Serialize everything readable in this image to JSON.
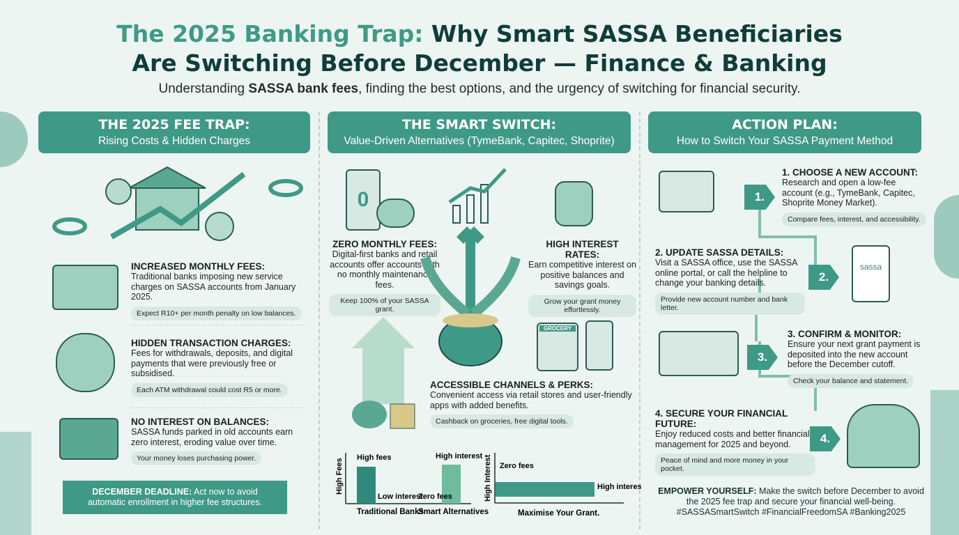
{
  "header": {
    "title_part1": "The 2025 Banking Trap:",
    "title_part2": " Why Smart SASSA Beneficiaries",
    "title_line2": "Are Switching Before December — Finance & Banking",
    "subtitle_pre": "Understanding ",
    "subtitle_bold": "SASSA bank fees",
    "subtitle_post": ", finding the best options, and the urgency of switching for financial security."
  },
  "colors": {
    "accent": "#3f9987",
    "title": "#0f3d3a",
    "background": "#edf5f2"
  },
  "left": {
    "banner_title": "THE 2025 FEE TRAP:",
    "banner_sub": "Rising Costs & Hidden Charges",
    "items": [
      {
        "title": "INCREASED MONTHLY FEES:",
        "text": "Traditional banks imposing new service charges on SASSA accounts from January 2025.",
        "pill": "Expect R10+ per month penalty on low balances.",
        "icon": "coins-calendar-icon"
      },
      {
        "title": "HIDDEN TRANSACTION CHARGES:",
        "text": "Fees for withdrawals, deposits, and digital payments that were previously free or subsidised.",
        "pill": "Each ATM withdrawal could cost R5 or more.",
        "icon": "receipt-magnifier-icon"
      },
      {
        "title": "NO INTEREST ON BALANCES:",
        "text": "SASSA funds parked in old accounts earn zero interest, eroding value over time.",
        "pill": "Your money loses purchasing power.",
        "icon": "wallet-icon"
      }
    ],
    "deadline_bold": "DECEMBER DEADLINE:",
    "deadline_text": " Act now to avoid automatic enrollment in higher fee structures."
  },
  "middle": {
    "banner_title": "THE SMART SWITCH:",
    "banner_sub": "Value-Driven Alternatives (TymeBank, Capitec, Shoprite)",
    "zero_fees": {
      "title": "ZERO MONTHLY FEES:",
      "text": "Digital-first banks and retail accounts offer accounts with no monthly maintenance fees.",
      "pill": "Keep 100% of your SASSA grant."
    },
    "interest": {
      "title": "HIGH INTEREST RATES:",
      "text": "Earn competitive interest on positive balances and savings goals.",
      "pill": "Grow your grant money effortlessly."
    },
    "channels": {
      "title": "ACCESSIBLE CHANNELS & PERKS:",
      "text": "Convenient access via retail stores and user-friendly apps with added benefits.",
      "pill": "Cashback on groceries, free digital tools."
    },
    "store_sign": "GROCERY",
    "phone_digit": "0",
    "chart1": {
      "ylabel": "High Fees",
      "groups": [
        {
          "label": "Traditional Banks",
          "bars": [
            {
              "label": "High fees",
              "value": 0.7
            },
            {
              "label": "Low interest",
              "value": 0
            }
          ]
        },
        {
          "label": "Smart Alternatives",
          "bars": [
            {
              "label": "Zero fees",
              "value": 0
            },
            {
              "label": "High interest",
              "value": 0.8
            }
          ]
        }
      ]
    },
    "chart2": {
      "ylabel": "High Interest",
      "xlabel": "Maximise Your Grant.",
      "label_start": "Zero fees",
      "label_end": "High interest"
    }
  },
  "right": {
    "banner_title": "ACTION PLAN:",
    "banner_sub": "How to Switch Your SASSA Payment Method",
    "steps": [
      {
        "num": "1.",
        "title": "1. CHOOSE A NEW ACCOUNT:",
        "text": "Research and open a low-fee account (e.g., TymeBank, Capitec, Shoprite Money Market).",
        "pill": "Compare fees, interest, and accessibility."
      },
      {
        "num": "2.",
        "title": "2. UPDATE SASSA DETAILS:",
        "text": "Visit a SASSA office, use the SASSA online portal, or call the helpline to change your banking details.",
        "pill": "Provide new account number and bank letter."
      },
      {
        "num": "3.",
        "title": "3. CONFIRM & MONITOR:",
        "text": "Ensure your next grant payment is deposited into the new account before the December cutoff.",
        "pill": "Check your balance and statement."
      },
      {
        "num": "4.",
        "title": "4. SECURE YOUR FINANCIAL FUTURE:",
        "text": "Enjoy reduced costs and better financial management for 2025 and beyond.",
        "pill": "Peace of mind and more money in your pocket."
      }
    ],
    "doc_logo": "sassa",
    "empower_bold": "EMPOWER YOURSELF:",
    "empower_text": " Make the switch before December to avoid the 2025 fee trap and secure your financial well-being.",
    "hashtags": "#SASSASmartSwitch #FinancialFreedomSA #Banking2025"
  }
}
